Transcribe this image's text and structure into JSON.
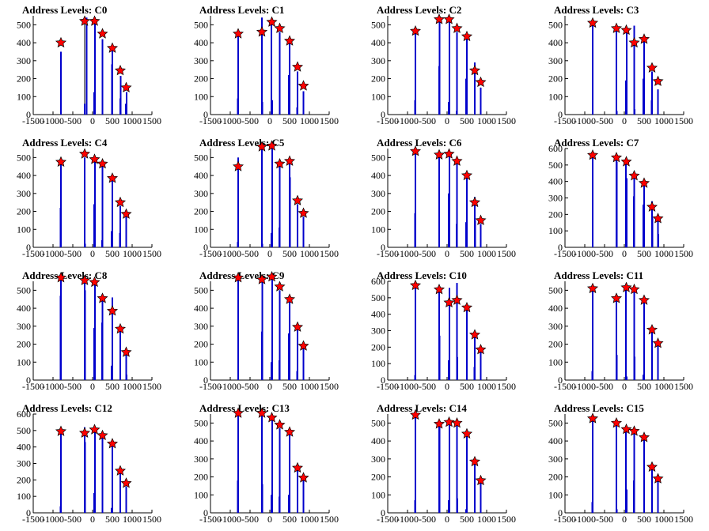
{
  "figure": {
    "xlim": [
      -1500,
      1500
    ],
    "xticks": [
      -1500,
      -1000,
      -500,
      0,
      500,
      1000,
      1500
    ],
    "colors": {
      "bar": "#0000cc",
      "tall_bar": "#000000",
      "star": "#ff0000",
      "axis": "#000000"
    }
  },
  "chart_data": [
    {
      "type": "bar",
      "title": "Address Levels: C0",
      "ylim": [
        0,
        550
      ],
      "yticks": [
        0,
        100,
        200,
        300,
        400,
        500
      ],
      "levels": [
        -800,
        -200,
        50,
        250,
        500,
        700,
        850
      ],
      "stars": [
        400,
        520,
        520,
        450,
        370,
        245,
        150
      ],
      "peaks": [
        350,
        540,
        540,
        420,
        380,
        215,
        125
      ],
      "bars": [
        [
          -800,
          350
        ],
        [
          -200,
          60
        ],
        [
          -150,
          540
        ],
        [
          40,
          125
        ],
        [
          60,
          540
        ],
        [
          250,
          420
        ],
        [
          490,
          280
        ],
        [
          500,
          380
        ],
        [
          700,
          90
        ],
        [
          710,
          215
        ],
        [
          840,
          60
        ],
        [
          860,
          125
        ]
      ]
    },
    {
      "type": "bar",
      "title": "Address Levels: C1",
      "ylim": [
        0,
        550
      ],
      "yticks": [
        0,
        100,
        200,
        300,
        400,
        500
      ],
      "levels": [
        -800,
        -200,
        50,
        250,
        500,
        700,
        850
      ],
      "stars": [
        450,
        460,
        515,
        480,
        410,
        265,
        160
      ],
      "peaks": [
        470,
        540,
        500,
        460,
        400,
        240,
        130
      ],
      "bars": [
        [
          -800,
          470
        ],
        [
          -810,
          90
        ],
        [
          -200,
          540
        ],
        [
          -190,
          70
        ],
        [
          40,
          500
        ],
        [
          60,
          80
        ],
        [
          250,
          460
        ],
        [
          480,
          220
        ],
        [
          500,
          400
        ],
        [
          690,
          40
        ],
        [
          700,
          240
        ],
        [
          850,
          130
        ]
      ]
    },
    {
      "type": "bar",
      "title": "Address Levels: C2",
      "ylim": [
        0,
        550
      ],
      "yticks": [
        0,
        100,
        200,
        300,
        400,
        500
      ],
      "levels": [
        -800,
        -200,
        50,
        250,
        500,
        700,
        850
      ],
      "stars": [
        465,
        530,
        530,
        480,
        435,
        245,
        180
      ],
      "peaks": [
        460,
        530,
        520,
        460,
        420,
        290,
        150
      ],
      "bars": [
        [
          -800,
          460
        ],
        [
          -810,
          80
        ],
        [
          -200,
          270
        ],
        [
          -190,
          530
        ],
        [
          40,
          70
        ],
        [
          60,
          520
        ],
        [
          240,
          20
        ],
        [
          250,
          460
        ],
        [
          480,
          200
        ],
        [
          500,
          420
        ],
        [
          700,
          290
        ],
        [
          850,
          150
        ]
      ]
    },
    {
      "type": "bar",
      "title": "Address Levels: C3",
      "ylim": [
        0,
        550
      ],
      "yticks": [
        0,
        100,
        200,
        300,
        400,
        500
      ],
      "levels": [
        -800,
        -200,
        50,
        250,
        500,
        700,
        850
      ],
      "stars": [
        510,
        480,
        470,
        400,
        420,
        260,
        185
      ],
      "peaks": [
        500,
        500,
        480,
        495,
        420,
        240,
        140
      ],
      "bars": [
        [
          -800,
          500
        ],
        [
          -200,
          500
        ],
        [
          -190,
          20
        ],
        [
          40,
          190
        ],
        [
          60,
          480
        ],
        [
          250,
          495
        ],
        [
          260,
          30
        ],
        [
          480,
          200
        ],
        [
          500,
          420
        ],
        [
          690,
          80
        ],
        [
          700,
          240
        ],
        [
          850,
          140
        ]
      ]
    },
    {
      "type": "bar",
      "title": "Address Levels: C4",
      "ylim": [
        0,
        550
      ],
      "yticks": [
        0,
        100,
        200,
        300,
        400,
        500
      ],
      "levels": [
        -800,
        -200,
        50,
        250,
        500,
        700,
        850
      ],
      "stars": [
        475,
        520,
        490,
        465,
        385,
        250,
        185
      ],
      "peaks": [
        480,
        500,
        480,
        450,
        380,
        230,
        180
      ],
      "bars": [
        [
          -810,
          220
        ],
        [
          -800,
          480
        ],
        [
          -200,
          500
        ],
        [
          -190,
          20
        ],
        [
          40,
          240
        ],
        [
          60,
          480
        ],
        [
          240,
          40
        ],
        [
          250,
          450
        ],
        [
          480,
          90
        ],
        [
          500,
          380
        ],
        [
          690,
          80
        ],
        [
          700,
          230
        ],
        [
          850,
          180
        ]
      ]
    },
    {
      "type": "bar",
      "title": "Address Levels: C5",
      "ylim": [
        0,
        550
      ],
      "yticks": [
        0,
        100,
        200,
        300,
        400,
        500
      ],
      "levels": [
        -800,
        -200,
        50,
        250,
        500,
        700,
        850
      ],
      "stars": [
        450,
        560,
        565,
        465,
        480,
        260,
        190
      ],
      "peaks": [
        500,
        560,
        550,
        460,
        480,
        240,
        170
      ],
      "bars": [
        [
          -800,
          500
        ],
        [
          -810,
          30
        ],
        [
          -200,
          560
        ],
        [
          -190,
          20
        ],
        [
          40,
          80
        ],
        [
          60,
          550
        ],
        [
          240,
          110
        ],
        [
          250,
          460
        ],
        [
          500,
          480
        ],
        [
          510,
          390
        ],
        [
          700,
          240
        ],
        [
          850,
          170
        ]
      ]
    },
    {
      "type": "bar",
      "title": "Address Levels: C6",
      "ylim": [
        0,
        550
      ],
      "yticks": [
        0,
        100,
        200,
        300,
        400,
        500
      ],
      "levels": [
        -800,
        -200,
        50,
        250,
        500,
        700,
        850
      ],
      "stars": [
        535,
        515,
        520,
        480,
        400,
        250,
        150
      ],
      "peaks": [
        520,
        510,
        510,
        470,
        400,
        280,
        130
      ],
      "bars": [
        [
          -810,
          190
        ],
        [
          -800,
          520
        ],
        [
          -200,
          510
        ],
        [
          40,
          300
        ],
        [
          60,
          510
        ],
        [
          240,
          130
        ],
        [
          250,
          470
        ],
        [
          480,
          140
        ],
        [
          500,
          400
        ],
        [
          700,
          280
        ],
        [
          710,
          150
        ],
        [
          850,
          130
        ]
      ]
    },
    {
      "type": "bar",
      "title": "Address Levels: C7",
      "ylim": [
        0,
        600
      ],
      "yticks": [
        0,
        100,
        200,
        300,
        400,
        500,
        600
      ],
      "levels": [
        -800,
        -200,
        50,
        250,
        500,
        700,
        850
      ],
      "stars": [
        560,
        545,
        520,
        435,
        390,
        245,
        175
      ],
      "peaks": [
        560,
        540,
        510,
        420,
        400,
        280,
        170
      ],
      "bars": [
        [
          -800,
          560
        ],
        [
          -200,
          540
        ],
        [
          -190,
          520
        ],
        [
          40,
          510
        ],
        [
          60,
          420
        ],
        [
          240,
          310
        ],
        [
          250,
          420
        ],
        [
          480,
          260
        ],
        [
          500,
          400
        ],
        [
          700,
          280
        ],
        [
          710,
          180
        ],
        [
          850,
          170
        ],
        [
          860,
          80
        ]
      ]
    },
    {
      "type": "bar",
      "title": "Address Levels: C8",
      "ylim": [
        0,
        550
      ],
      "yticks": [
        0,
        100,
        200,
        300,
        400,
        500
      ],
      "levels": [
        -800,
        -200,
        50,
        250,
        500,
        700,
        850
      ],
      "stars": [
        570,
        555,
        545,
        455,
        385,
        285,
        155
      ],
      "peaks": [
        560,
        550,
        530,
        480,
        460,
        290,
        170
      ],
      "bars": [
        [
          -810,
          470
        ],
        [
          -800,
          560
        ],
        [
          -200,
          550
        ],
        [
          -190,
          500
        ],
        [
          40,
          290
        ],
        [
          60,
          530
        ],
        [
          240,
          320
        ],
        [
          250,
          480
        ],
        [
          480,
          80
        ],
        [
          500,
          460
        ],
        [
          700,
          290
        ],
        [
          850,
          170
        ],
        [
          860,
          30
        ]
      ]
    },
    {
      "type": "bar",
      "title": "Address Levels: C9",
      "ylim": [
        0,
        550
      ],
      "yticks": [
        0,
        100,
        200,
        300,
        400,
        500
      ],
      "levels": [
        -800,
        -200,
        50,
        250,
        500,
        700,
        850
      ],
      "stars": [
        570,
        560,
        575,
        520,
        450,
        295,
        190
      ],
      "peaks": [
        560,
        550,
        560,
        500,
        440,
        290,
        180
      ],
      "bars": [
        [
          -800,
          560
        ],
        [
          -200,
          270
        ],
        [
          -190,
          550
        ],
        [
          40,
          100
        ],
        [
          60,
          560
        ],
        [
          240,
          110
        ],
        [
          250,
          500
        ],
        [
          480,
          260
        ],
        [
          500,
          440
        ],
        [
          690,
          50
        ],
        [
          700,
          290
        ],
        [
          850,
          180
        ]
      ]
    },
    {
      "type": "bar",
      "title": "Address Levels: C10",
      "ylim": [
        0,
        600
      ],
      "yticks": [
        0,
        100,
        200,
        300,
        400,
        500,
        600
      ],
      "levels": [
        -800,
        -200,
        50,
        250,
        500,
        700,
        850
      ],
      "stars": [
        575,
        550,
        470,
        485,
        440,
        275,
        185
      ],
      "peaks": [
        570,
        540,
        560,
        590,
        460,
        270,
        180
      ],
      "bars": [
        [
          -800,
          570
        ],
        [
          -810,
          30
        ],
        [
          -200,
          540
        ],
        [
          -190,
          270
        ],
        [
          40,
          120
        ],
        [
          60,
          560
        ],
        [
          250,
          590
        ],
        [
          260,
          140
        ],
        [
          500,
          460
        ],
        [
          690,
          80
        ],
        [
          700,
          270
        ],
        [
          850,
          180
        ]
      ]
    },
    {
      "type": "bar",
      "title": "Address Levels: C11",
      "ylim": [
        0,
        550
      ],
      "yticks": [
        0,
        100,
        200,
        300,
        400,
        500
      ],
      "levels": [
        -800,
        -200,
        50,
        250,
        500,
        700,
        850
      ],
      "stars": [
        510,
        455,
        515,
        505,
        445,
        280,
        205
      ],
      "peaks": [
        500,
        480,
        530,
        500,
        440,
        290,
        200
      ],
      "bars": [
        [
          -800,
          500
        ],
        [
          -810,
          50
        ],
        [
          -200,
          480
        ],
        [
          -190,
          140
        ],
        [
          40,
          530
        ],
        [
          60,
          20
        ],
        [
          250,
          500
        ],
        [
          260,
          130
        ],
        [
          480,
          30
        ],
        [
          500,
          440
        ],
        [
          700,
          290
        ],
        [
          850,
          200
        ]
      ]
    },
    {
      "type": "bar",
      "title": "Address Levels: C12",
      "ylim": [
        0,
        600
      ],
      "yticks": [
        0,
        100,
        200,
        300,
        400,
        500,
        600
      ],
      "levels": [
        -800,
        -200,
        50,
        250,
        500,
        700,
        850
      ],
      "stars": [
        495,
        485,
        505,
        470,
        420,
        255,
        180
      ],
      "peaks": [
        480,
        520,
        500,
        490,
        430,
        240,
        160
      ],
      "bars": [
        [
          -800,
          480
        ],
        [
          -810,
          40
        ],
        [
          -200,
          520
        ],
        [
          -190,
          430
        ],
        [
          40,
          120
        ],
        [
          60,
          500
        ],
        [
          250,
          490
        ],
        [
          480,
          30
        ],
        [
          500,
          430
        ],
        [
          700,
          240
        ],
        [
          850,
          160
        ]
      ]
    },
    {
      "type": "bar",
      "title": "Address Levels: C13",
      "ylim": [
        0,
        550
      ],
      "yticks": [
        0,
        100,
        200,
        300,
        400,
        500
      ],
      "levels": [
        -800,
        -200,
        50,
        250,
        500,
        700,
        850
      ],
      "stars": [
        555,
        555,
        530,
        490,
        450,
        250,
        195
      ],
      "peaks": [
        550,
        540,
        520,
        470,
        440,
        240,
        180
      ],
      "bars": [
        [
          -810,
          180
        ],
        [
          -800,
          550
        ],
        [
          -200,
          540
        ],
        [
          -190,
          160
        ],
        [
          40,
          100
        ],
        [
          60,
          520
        ],
        [
          240,
          90
        ],
        [
          250,
          470
        ],
        [
          480,
          100
        ],
        [
          500,
          440
        ],
        [
          700,
          240
        ],
        [
          850,
          180
        ]
      ]
    },
    {
      "type": "bar",
      "title": "Address Levels: C14",
      "ylim": [
        0,
        550
      ],
      "yticks": [
        0,
        100,
        200,
        300,
        400,
        500
      ],
      "levels": [
        -800,
        -200,
        50,
        250,
        500,
        700,
        850
      ],
      "stars": [
        545,
        495,
        505,
        500,
        440,
        285,
        180
      ],
      "peaks": [
        540,
        500,
        510,
        500,
        430,
        270,
        170
      ],
      "bars": [
        [
          -810,
          70
        ],
        [
          -800,
          540
        ],
        [
          -200,
          500
        ],
        [
          -190,
          480
        ],
        [
          40,
          70
        ],
        [
          60,
          510
        ],
        [
          250,
          500
        ],
        [
          260,
          80
        ],
        [
          480,
          20
        ],
        [
          500,
          430
        ],
        [
          700,
          270
        ],
        [
          850,
          170
        ]
      ]
    },
    {
      "type": "bar",
      "title": "Address Levels: C15",
      "ylim": [
        0,
        550
      ],
      "yticks": [
        0,
        100,
        200,
        300,
        400,
        500
      ],
      "levels": [
        -800,
        -200,
        50,
        250,
        500,
        700,
        850
      ],
      "stars": [
        525,
        500,
        465,
        455,
        420,
        255,
        190
      ],
      "peaks": [
        520,
        510,
        480,
        450,
        410,
        240,
        180
      ],
      "bars": [
        [
          -800,
          520
        ],
        [
          -810,
          60
        ],
        [
          -200,
          510
        ],
        [
          -190,
          20
        ],
        [
          40,
          480
        ],
        [
          60,
          130
        ],
        [
          240,
          180
        ],
        [
          250,
          450
        ],
        [
          500,
          410
        ],
        [
          700,
          240
        ],
        [
          850,
          180
        ]
      ]
    }
  ]
}
